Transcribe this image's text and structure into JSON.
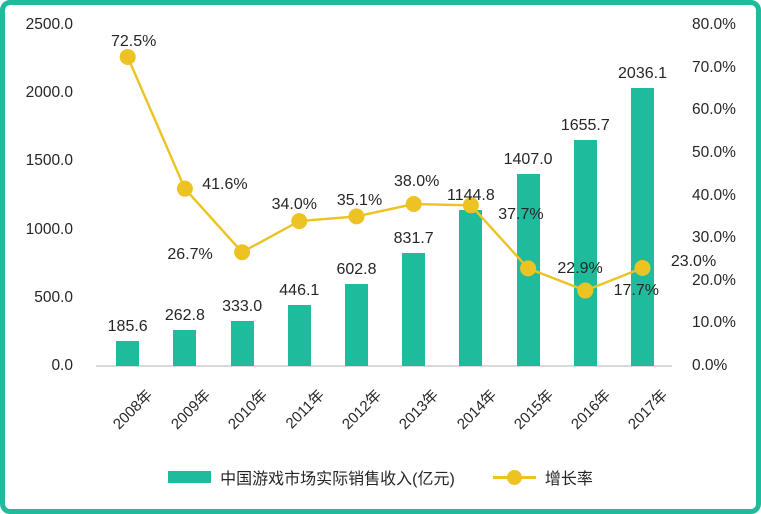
{
  "chart_data": {
    "type": "combo",
    "categories": [
      "2008年",
      "2009年",
      "2010年",
      "2011年",
      "2012年",
      "2013年",
      "2014年",
      "2015年",
      "2016年",
      "2017年"
    ],
    "series": [
      {
        "name": "中国游戏市场实际销售收入(亿元)",
        "type": "bar",
        "axis": "left",
        "values": [
          185.6,
          262.8,
          333.0,
          446.1,
          602.8,
          831.7,
          1144.8,
          1407.0,
          1655.7,
          2036.1
        ],
        "data_labels": [
          "185.6",
          "262.8",
          "333.0",
          "446.1",
          "602.8",
          "831.7",
          "1144.8",
          "1407.0",
          "1655.7",
          "2036.1"
        ]
      },
      {
        "name": "增长率",
        "type": "line",
        "axis": "right",
        "values": [
          72.5,
          41.6,
          26.7,
          34.0,
          35.1,
          38.0,
          37.7,
          22.9,
          17.7,
          23.0
        ],
        "data_labels": [
          "72.5%",
          "41.6%",
          "26.7%",
          "34.0%",
          "35.1%",
          "38.0%",
          "37.7%",
          "22.9%",
          "17.7%",
          "23.0%"
        ],
        "label_offsets": [
          [
            6,
            -15
          ],
          [
            40,
            -4
          ],
          [
            -52,
            3
          ],
          [
            -5,
            -16
          ],
          [
            3,
            -15
          ],
          [
            3,
            -22
          ],
          [
            50,
            10
          ],
          [
            52,
            1
          ],
          [
            51,
            0
          ],
          [
            51,
            -6
          ]
        ]
      }
    ],
    "left_axis": {
      "min": 0,
      "max": 2500,
      "step": 500,
      "tick_labels": [
        "0.0",
        "500.0",
        "1000.0",
        "1500.0",
        "2000.0",
        "2500.0"
      ]
    },
    "right_axis": {
      "min": 0,
      "max": 80,
      "step": 10,
      "tick_labels": [
        "0.0%",
        "10.0%",
        "20.0%",
        "30.0%",
        "40.0%",
        "50.0%",
        "60.0%",
        "70.0%",
        "80.0%"
      ]
    },
    "legend": {
      "position": "bottom",
      "items": [
        "中国游戏市场实际销售收入(亿元)",
        "增长率"
      ]
    },
    "grid": "off",
    "title": "",
    "colors": {
      "bar": "#1EBC9C",
      "line": "#EDC323",
      "axis_line": "#D9D9D9",
      "text": "#262626",
      "frame_border": "#1EBC9C",
      "background": "#FFFFFF"
    }
  }
}
